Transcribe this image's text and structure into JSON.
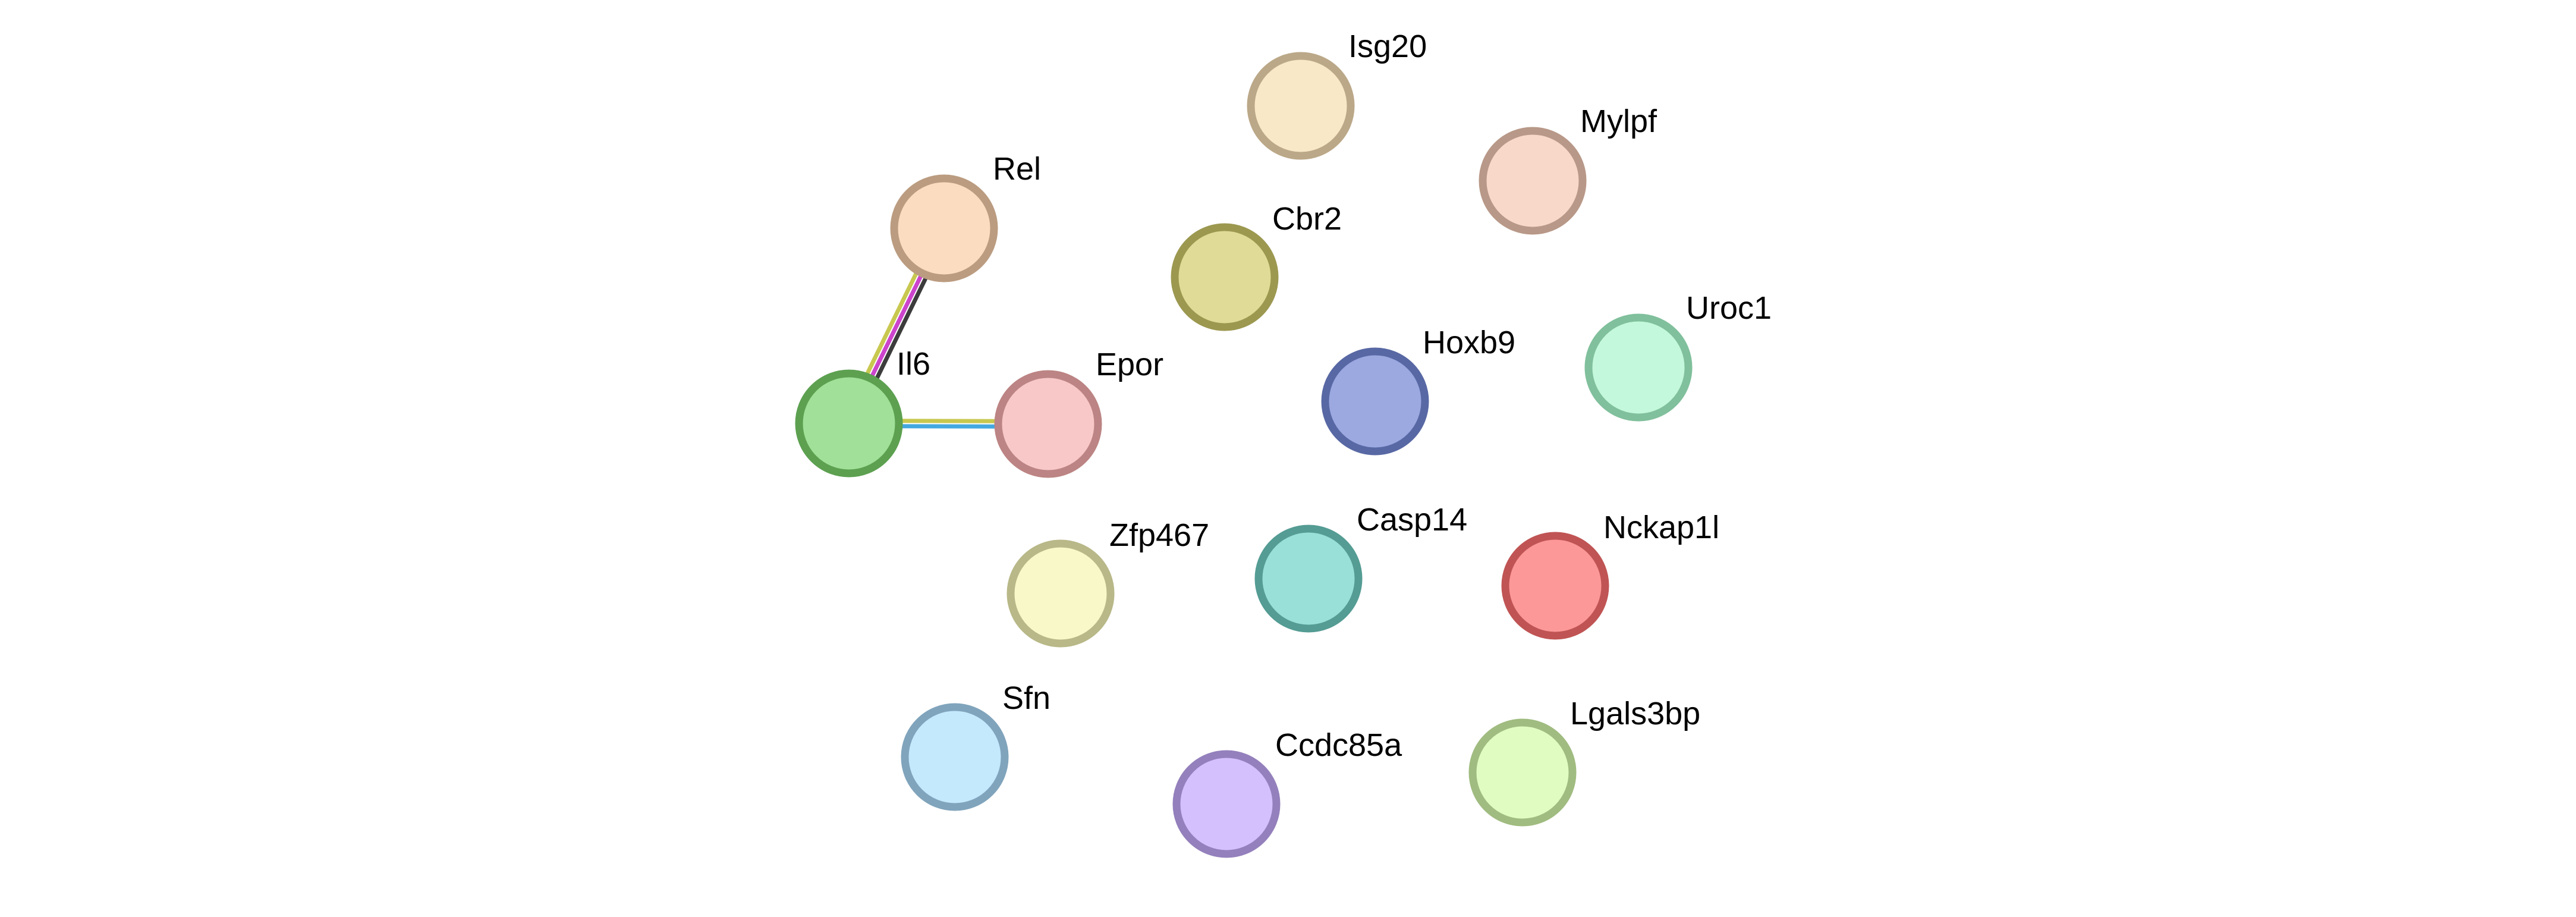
{
  "nodes": [
    {
      "id": "isg20",
      "label": "Isg20",
      "fill": "#f8e8c8",
      "stroke": "#bba888"
    },
    {
      "id": "mylpf",
      "label": "Mylpf",
      "fill": "#f8d8c8",
      "stroke": "#b89888"
    },
    {
      "id": "rel",
      "label": "Rel",
      "fill": "#fcdcc0",
      "stroke": "#bb9c80"
    },
    {
      "id": "cbr2",
      "label": "Cbr2",
      "fill": "#e0dc98",
      "stroke": "#9c9850"
    },
    {
      "id": "uroc1",
      "label": "Uroc1",
      "fill": "#c4f8dc",
      "stroke": "#80c09c"
    },
    {
      "id": "il6",
      "label": "Il6",
      "fill": "#a0e098",
      "stroke": "#5ca050"
    },
    {
      "id": "epor",
      "label": "Epor",
      "fill": "#f8c8c8",
      "stroke": "#bc8484"
    },
    {
      "id": "hoxb9",
      "label": "Hoxb9",
      "fill": "#9ca8e0",
      "stroke": "#5868a4"
    },
    {
      "id": "zfp467",
      "label": "Zfp467",
      "fill": "#f8f8c8",
      "stroke": "#b8b888"
    },
    {
      "id": "casp14",
      "label": "Casp14",
      "fill": "#98e0d8",
      "stroke": "#549c94"
    },
    {
      "id": "nckap1l",
      "label": "Nckap1l",
      "fill": "#fc9898",
      "stroke": "#c05454"
    },
    {
      "id": "sfn",
      "label": "Sfn",
      "fill": "#c4e8fc",
      "stroke": "#80a4bc"
    },
    {
      "id": "ccdc85a",
      "label": "Ccdc85a",
      "fill": "#d4c0fc",
      "stroke": "#9480bc"
    },
    {
      "id": "lgals3bp",
      "label": "Lgals3bp",
      "fill": "#e0fcc0",
      "stroke": "#a0bc80"
    }
  ],
  "edges": [
    {
      "source": "rel",
      "target": "il6",
      "colors": [
        "#3c3c3c",
        "#cc44cc",
        "#c8c850"
      ]
    },
    {
      "source": "il6",
      "target": "epor",
      "colors": [
        "#c8c850",
        "#44a8e0"
      ]
    }
  ]
}
